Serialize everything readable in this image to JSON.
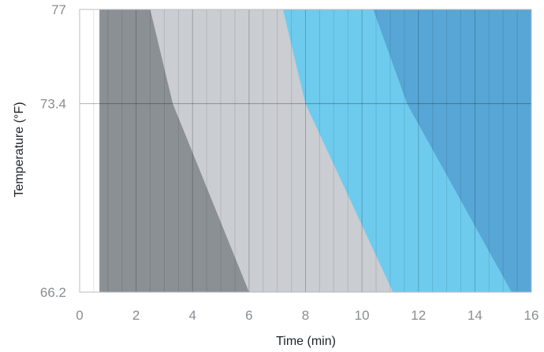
{
  "chart_data": {
    "type": "area",
    "xlabel": "Time (min)",
    "ylabel": "Temperature (°F)",
    "xlim": [
      0,
      16
    ],
    "ylim": [
      66.2,
      77
    ],
    "x_ticks": [
      "0",
      "2",
      "4",
      "6",
      "8",
      "10",
      "12",
      "14",
      "16"
    ],
    "y_ticks": [
      {
        "value": 66.2,
        "label": "66.2"
      },
      {
        "value": 73.4,
        "label": "73.4"
      },
      {
        "value": 77,
        "label": "77"
      }
    ],
    "grid": true,
    "bands": [
      {
        "color": "#8b9094",
        "boundary": [
          [
            0.7,
            77
          ],
          [
            0.7,
            66.2
          ]
        ]
      },
      {
        "color": "#cacdd1",
        "boundary": [
          [
            2.5,
            77
          ],
          [
            3.3,
            73.4
          ],
          [
            6.0,
            66.2
          ]
        ]
      },
      {
        "color": "#6ecbee",
        "boundary": [
          [
            7.2,
            77
          ],
          [
            8.0,
            73.4
          ],
          [
            11.1,
            66.2
          ]
        ]
      },
      {
        "color": "#57a6d6",
        "boundary": [
          [
            10.4,
            77
          ],
          [
            11.6,
            73.4
          ],
          [
            15.3,
            66.2
          ]
        ]
      }
    ]
  }
}
